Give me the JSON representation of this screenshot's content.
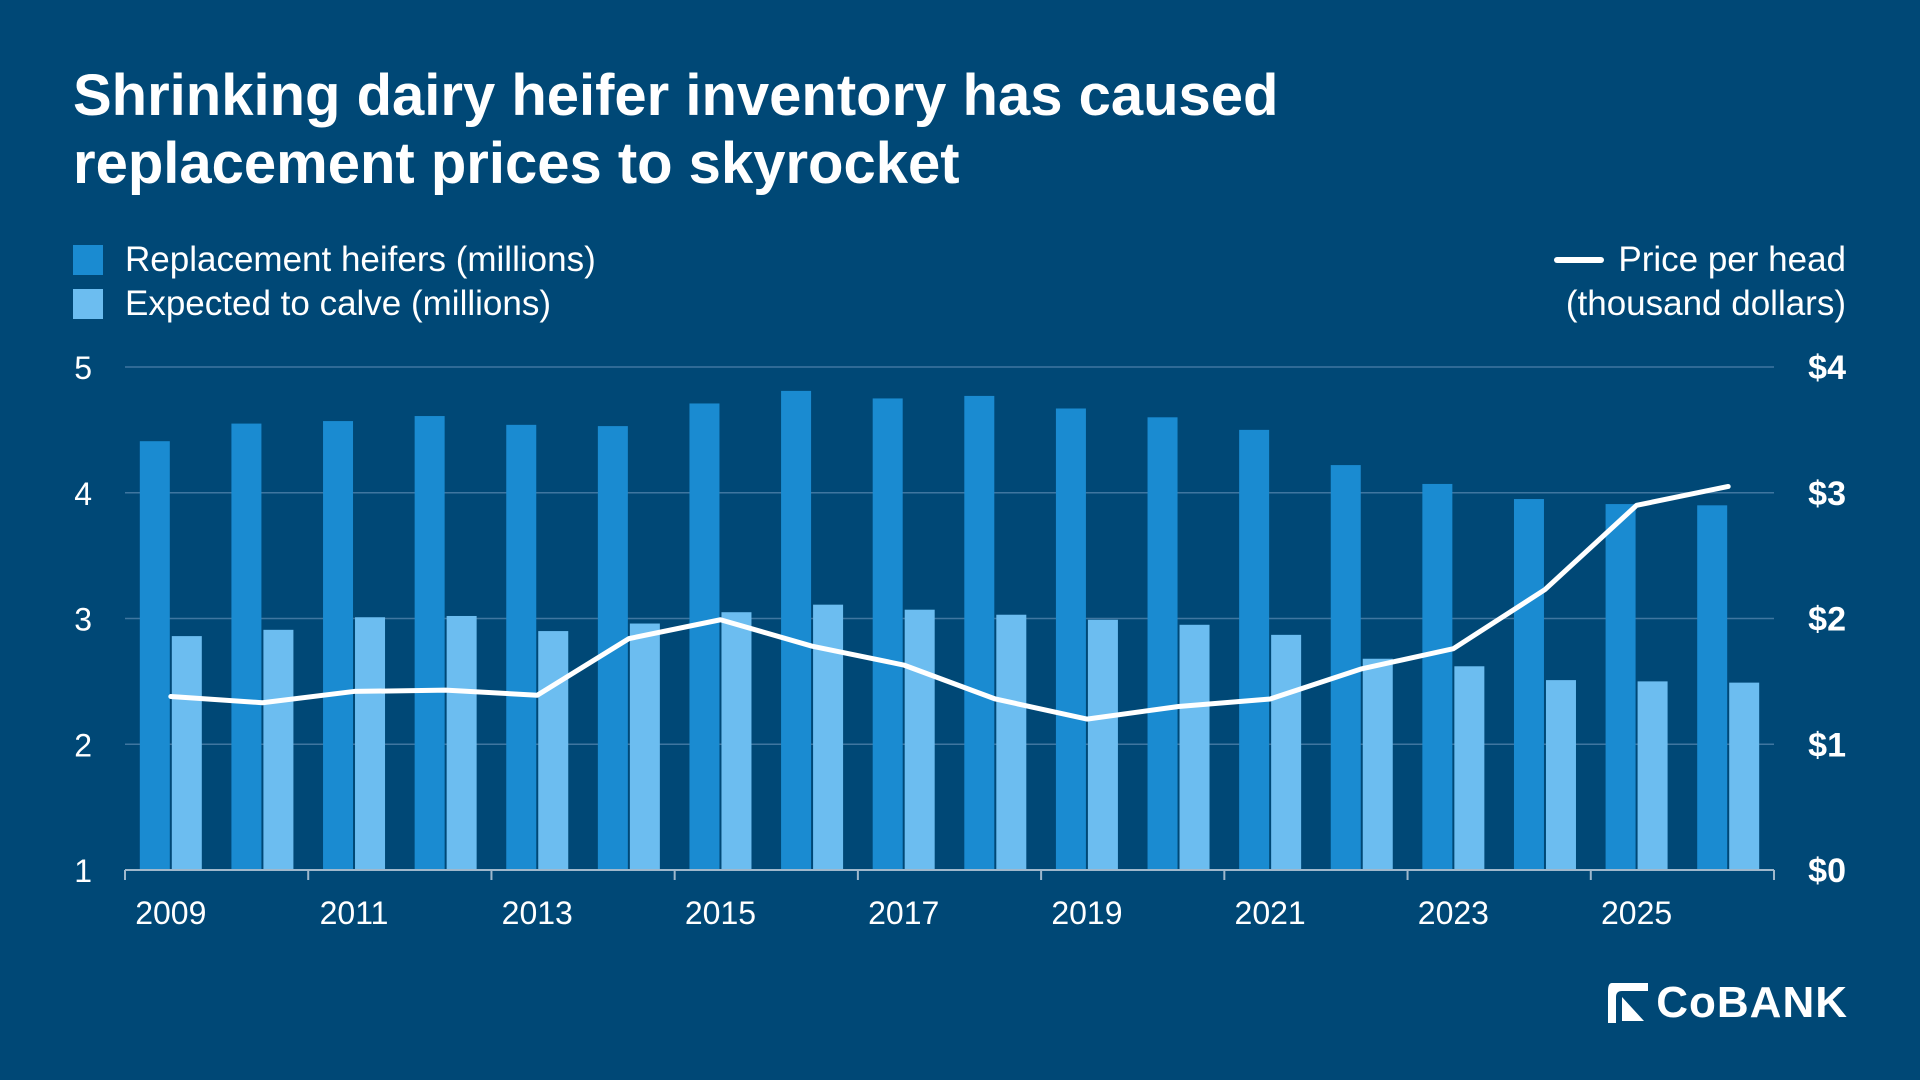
{
  "title": {
    "line1": "Shrinking dairy heifer inventory has caused",
    "line2": "replacement prices to skyrocket"
  },
  "legend": {
    "series1": "Replacement heifers (millions)",
    "series2": "Expected to calve (millions)",
    "line_label_1": "Price per head",
    "line_label_2": "(thousand dollars)"
  },
  "logo": {
    "text": "CoBANK"
  },
  "colors": {
    "background": "#004876",
    "replacement": "#1a8bd1",
    "calve": "#6cbdf0",
    "price": "#ffffff",
    "grid": "#3f76a0"
  },
  "chart_data": {
    "type": "bar",
    "years": [
      2009,
      2010,
      2011,
      2012,
      2013,
      2014,
      2015,
      2016,
      2017,
      2018,
      2019,
      2020,
      2021,
      2022,
      2023,
      2024,
      2025,
      2026
    ],
    "x_tick_labels": [
      "2009",
      "2011",
      "2013",
      "2015",
      "2017",
      "2019",
      "2021",
      "2023",
      "2025"
    ],
    "series": [
      {
        "name": "Replacement heifers (millions)",
        "type": "bar",
        "axis": "left",
        "values": [
          4.41,
          4.55,
          4.57,
          4.61,
          4.54,
          4.53,
          4.71,
          4.81,
          4.75,
          4.77,
          4.67,
          4.6,
          4.5,
          4.22,
          4.07,
          3.95,
          3.91,
          3.9
        ]
      },
      {
        "name": "Expected to calve (millions)",
        "type": "bar",
        "axis": "left",
        "values": [
          2.86,
          2.91,
          3.01,
          3.02,
          2.9,
          2.96,
          3.05,
          3.11,
          3.07,
          3.03,
          2.99,
          2.95,
          2.87,
          2.68,
          2.62,
          2.51,
          2.5,
          2.49
        ]
      },
      {
        "name": "Price per head (thousand dollars)",
        "type": "line",
        "axis": "right",
        "values": [
          1.38,
          1.33,
          1.42,
          1.43,
          1.39,
          1.84,
          1.99,
          1.78,
          1.63,
          1.36,
          1.2,
          1.3,
          1.36,
          1.6,
          1.76,
          2.23,
          2.9,
          3.05
        ]
      }
    ],
    "left_axis": {
      "ylim": [
        1,
        5
      ],
      "ticks": [
        "1",
        "2",
        "3",
        "4",
        "5"
      ]
    },
    "right_axis": {
      "ylim": [
        0,
        4
      ],
      "ticks": [
        "$0",
        "$1",
        "$2",
        "$3",
        "$4"
      ]
    },
    "grid": true,
    "legend": "top"
  }
}
